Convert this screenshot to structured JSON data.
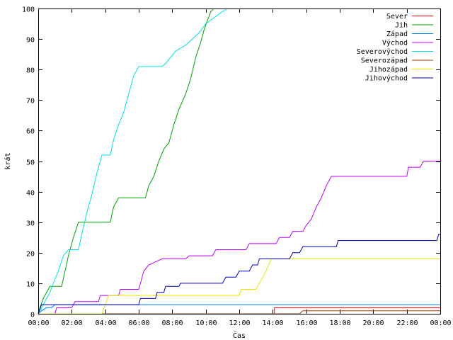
{
  "chart_data": {
    "type": "line",
    "xlabel": "Čas",
    "ylabel": "krát",
    "xlim": [
      0,
      24
    ],
    "ylim": [
      0,
      100
    ],
    "grid": false,
    "legend_position": "top-right",
    "x_ticks": [
      {
        "value": 0,
        "label": "00:00"
      },
      {
        "value": 2,
        "label": "02:00"
      },
      {
        "value": 4,
        "label": "04:00"
      },
      {
        "value": 6,
        "label": "06:00"
      },
      {
        "value": 8,
        "label": "08:00"
      },
      {
        "value": 10,
        "label": "10:00"
      },
      {
        "value": 12,
        "label": "12:00"
      },
      {
        "value": 14,
        "label": "14:00"
      },
      {
        "value": 16,
        "label": "16:00"
      },
      {
        "value": 18,
        "label": "18:00"
      },
      {
        "value": 20,
        "label": "20:00"
      },
      {
        "value": 22,
        "label": "22:00"
      },
      {
        "value": 24,
        "label": "00:00"
      }
    ],
    "y_ticks": [
      0,
      10,
      20,
      30,
      40,
      50,
      60,
      70,
      80,
      90,
      100
    ],
    "series": [
      {
        "name": "Sever",
        "color": "#ff0000",
        "points": [
          [
            0,
            0
          ],
          [
            14.1,
            0
          ],
          [
            14.1,
            2
          ],
          [
            24,
            2
          ]
        ]
      },
      {
        "name": "Jih",
        "color": "#00a000",
        "points": [
          [
            0,
            0
          ],
          [
            0.1,
            2
          ],
          [
            0.3,
            5
          ],
          [
            0.5,
            7
          ],
          [
            0.7,
            9
          ],
          [
            1.4,
            9
          ],
          [
            1.6,
            14
          ],
          [
            1.8,
            19
          ],
          [
            2.1,
            25
          ],
          [
            2.4,
            30
          ],
          [
            4.3,
            30
          ],
          [
            4.5,
            35
          ],
          [
            4.8,
            38
          ],
          [
            6.4,
            38
          ],
          [
            6.6,
            42
          ],
          [
            6.9,
            45
          ],
          [
            7.2,
            50
          ],
          [
            7.5,
            54
          ],
          [
            7.8,
            56
          ],
          [
            8.1,
            62
          ],
          [
            8.4,
            67
          ],
          [
            8.8,
            72
          ],
          [
            9.1,
            77
          ],
          [
            9.4,
            84
          ],
          [
            9.7,
            89
          ],
          [
            9.9,
            93
          ],
          [
            10.1,
            96
          ],
          [
            10.3,
            99
          ],
          [
            10.5,
            100
          ]
        ]
      },
      {
        "name": "Západ",
        "color": "#0080ff",
        "points": [
          [
            0,
            0
          ],
          [
            0.2,
            1
          ],
          [
            0.5,
            2
          ],
          [
            0.8,
            2
          ],
          [
            1.0,
            3
          ],
          [
            24,
            3
          ]
        ]
      },
      {
        "name": "Východ",
        "color": "#c000ff",
        "points": [
          [
            0,
            0
          ],
          [
            1.0,
            0
          ],
          [
            1.1,
            2
          ],
          [
            2.0,
            2
          ],
          [
            2.2,
            4
          ],
          [
            3.6,
            4
          ],
          [
            3.7,
            6
          ],
          [
            4.8,
            6
          ],
          [
            4.9,
            8
          ],
          [
            6.0,
            8
          ],
          [
            6.1,
            10
          ],
          [
            6.3,
            14
          ],
          [
            6.6,
            16
          ],
          [
            7.0,
            17
          ],
          [
            7.4,
            18
          ],
          [
            8.8,
            18
          ],
          [
            9.0,
            19
          ],
          [
            10.4,
            19
          ],
          [
            10.6,
            21
          ],
          [
            12.4,
            21
          ],
          [
            12.6,
            23
          ],
          [
            14.2,
            23
          ],
          [
            14.4,
            25
          ],
          [
            15.0,
            25
          ],
          [
            15.2,
            27
          ],
          [
            15.8,
            27
          ],
          [
            16.0,
            29
          ],
          [
            16.3,
            31
          ],
          [
            16.6,
            35
          ],
          [
            16.9,
            38
          ],
          [
            17.2,
            42
          ],
          [
            17.5,
            45
          ],
          [
            22.0,
            45
          ],
          [
            22.1,
            48
          ],
          [
            22.8,
            48
          ],
          [
            23.0,
            50
          ],
          [
            24,
            50
          ]
        ]
      },
      {
        "name": "Severovýchod",
        "color": "#00e0e0",
        "points": [
          [
            0,
            0
          ],
          [
            0.3,
            3
          ],
          [
            0.7,
            7
          ],
          [
            0.9,
            10
          ],
          [
            1.2,
            14
          ],
          [
            1.5,
            19
          ],
          [
            1.8,
            21
          ],
          [
            2.4,
            21
          ],
          [
            2.6,
            26
          ],
          [
            2.9,
            33
          ],
          [
            3.2,
            39
          ],
          [
            3.5,
            46
          ],
          [
            3.8,
            52
          ],
          [
            4.3,
            52
          ],
          [
            4.5,
            57
          ],
          [
            4.8,
            62
          ],
          [
            5.1,
            66
          ],
          [
            5.4,
            72
          ],
          [
            5.7,
            78
          ],
          [
            6.0,
            81
          ],
          [
            7.4,
            81
          ],
          [
            7.6,
            82
          ],
          [
            7.9,
            84
          ],
          [
            8.2,
            86
          ],
          [
            8.5,
            87
          ],
          [
            8.8,
            88
          ],
          [
            9.2,
            90
          ],
          [
            9.6,
            92
          ],
          [
            10.0,
            95
          ],
          [
            10.5,
            97
          ],
          [
            11.0,
            99
          ],
          [
            11.3,
            100
          ]
        ]
      },
      {
        "name": "Severozápad",
        "color": "#a04000",
        "points": [
          [
            0,
            0
          ],
          [
            15.6,
            0
          ],
          [
            15.8,
            1
          ],
          [
            24,
            1
          ]
        ]
      },
      {
        "name": "Jihozápad",
        "color": "#e8e800",
        "points": [
          [
            0,
            0
          ],
          [
            3.8,
            0
          ],
          [
            4.0,
            3
          ],
          [
            4.2,
            6
          ],
          [
            12.0,
            6
          ],
          [
            12.1,
            8
          ],
          [
            13.0,
            8
          ],
          [
            13.2,
            10
          ],
          [
            13.6,
            14
          ],
          [
            13.9,
            18
          ],
          [
            24,
            18
          ]
        ]
      },
      {
        "name": "Jihovýchod",
        "color": "#0000c0",
        "points": [
          [
            0,
            0
          ],
          [
            0.2,
            3
          ],
          [
            6.0,
            3
          ],
          [
            6.1,
            5
          ],
          [
            7.0,
            5
          ],
          [
            7.1,
            7
          ],
          [
            7.5,
            7
          ],
          [
            7.6,
            9
          ],
          [
            8.4,
            9
          ],
          [
            8.5,
            10
          ],
          [
            11.0,
            10
          ],
          [
            11.2,
            12
          ],
          [
            11.8,
            12
          ],
          [
            12.0,
            14
          ],
          [
            12.6,
            14
          ],
          [
            12.8,
            16
          ],
          [
            13.1,
            16
          ],
          [
            13.2,
            18
          ],
          [
            15.0,
            18
          ],
          [
            15.2,
            20
          ],
          [
            15.6,
            20
          ],
          [
            15.8,
            22
          ],
          [
            17.8,
            22
          ],
          [
            17.9,
            24
          ],
          [
            23.8,
            24
          ],
          [
            23.9,
            26
          ],
          [
            24,
            26
          ]
        ]
      }
    ]
  }
}
